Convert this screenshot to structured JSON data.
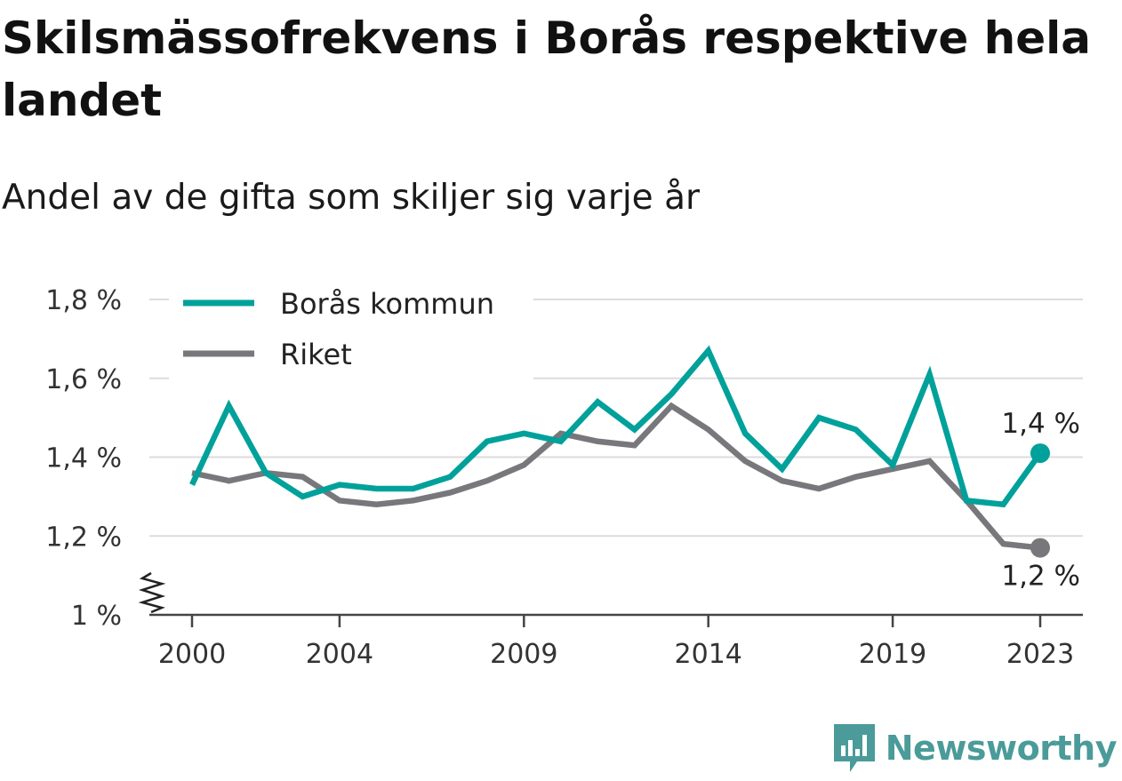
{
  "title": "Skilsmässofrekvens i Borås respektive hela landet",
  "subtitle": "Andel av de gifta som skiljer sig varje år",
  "brand": {
    "name": "Newsworthy",
    "color": "#4a9b99",
    "icon": "bar-chart-bubble-icon"
  },
  "chart_data": {
    "type": "line",
    "x": [
      2000,
      2001,
      2002,
      2003,
      2004,
      2005,
      2006,
      2007,
      2008,
      2009,
      2010,
      2011,
      2012,
      2013,
      2014,
      2015,
      2016,
      2017,
      2018,
      2019,
      2020,
      2021,
      2022,
      2023
    ],
    "x_ticks": [
      2000,
      2004,
      2009,
      2014,
      2019,
      2023
    ],
    "y_ticks": [
      1.0,
      1.2,
      1.4,
      1.6,
      1.8
    ],
    "y_tick_labels": [
      "1 %",
      "1,2 %",
      "1,4 %",
      "1,6 %",
      "1,8 %"
    ],
    "ylim": [
      1.0,
      1.8
    ],
    "y_axis_break": true,
    "grid": true,
    "legend": "top-left",
    "series": [
      {
        "name": "Borås kommun",
        "color": "#00a19a",
        "end_label": "1,4 %",
        "values": [
          1.33,
          1.53,
          1.36,
          1.3,
          1.33,
          1.32,
          1.32,
          1.35,
          1.44,
          1.46,
          1.44,
          1.54,
          1.47,
          1.56,
          1.67,
          1.46,
          1.37,
          1.5,
          1.47,
          1.38,
          1.61,
          1.29,
          1.28,
          1.41
        ]
      },
      {
        "name": "Riket",
        "color": "#77777c",
        "end_label": "1,2 %",
        "values": [
          1.36,
          1.34,
          1.36,
          1.35,
          1.29,
          1.28,
          1.29,
          1.31,
          1.34,
          1.38,
          1.46,
          1.44,
          1.43,
          1.53,
          1.47,
          1.39,
          1.34,
          1.32,
          1.35,
          1.37,
          1.39,
          1.29,
          1.18,
          1.17
        ]
      }
    ]
  }
}
